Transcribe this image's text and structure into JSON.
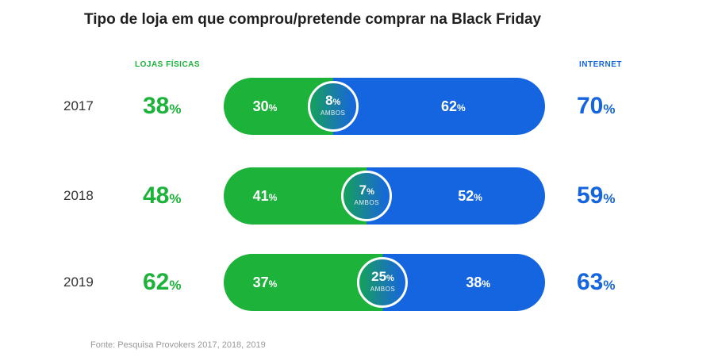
{
  "chart_data": {
    "type": "bar",
    "title": "Tipo de loja em que comprou/pretende comprar na Black Friday",
    "columns": {
      "left": "LOJAS FÍSICAS",
      "right": "INTERNET"
    },
    "both_label": "AMBOS",
    "unit": "%",
    "rows": [
      {
        "year": "2017",
        "physical_total": 38,
        "internet_total": 70,
        "physical_only": 30,
        "both": 8,
        "internet_only": 62
      },
      {
        "year": "2018",
        "physical_total": 48,
        "internet_total": 59,
        "physical_only": 41,
        "both": 7,
        "internet_only": 52
      },
      {
        "year": "2019",
        "physical_total": 62,
        "internet_total": 63,
        "physical_only": 37,
        "both": 25,
        "internet_only": 38
      }
    ],
    "source": "Fonte: Pesquisa Provokers 2017, 2018, 2019"
  },
  "colors": {
    "physical": "#1db33b",
    "internet": "#1565e0",
    "text": "#1f1f1f",
    "source": "#9a9a9a"
  }
}
